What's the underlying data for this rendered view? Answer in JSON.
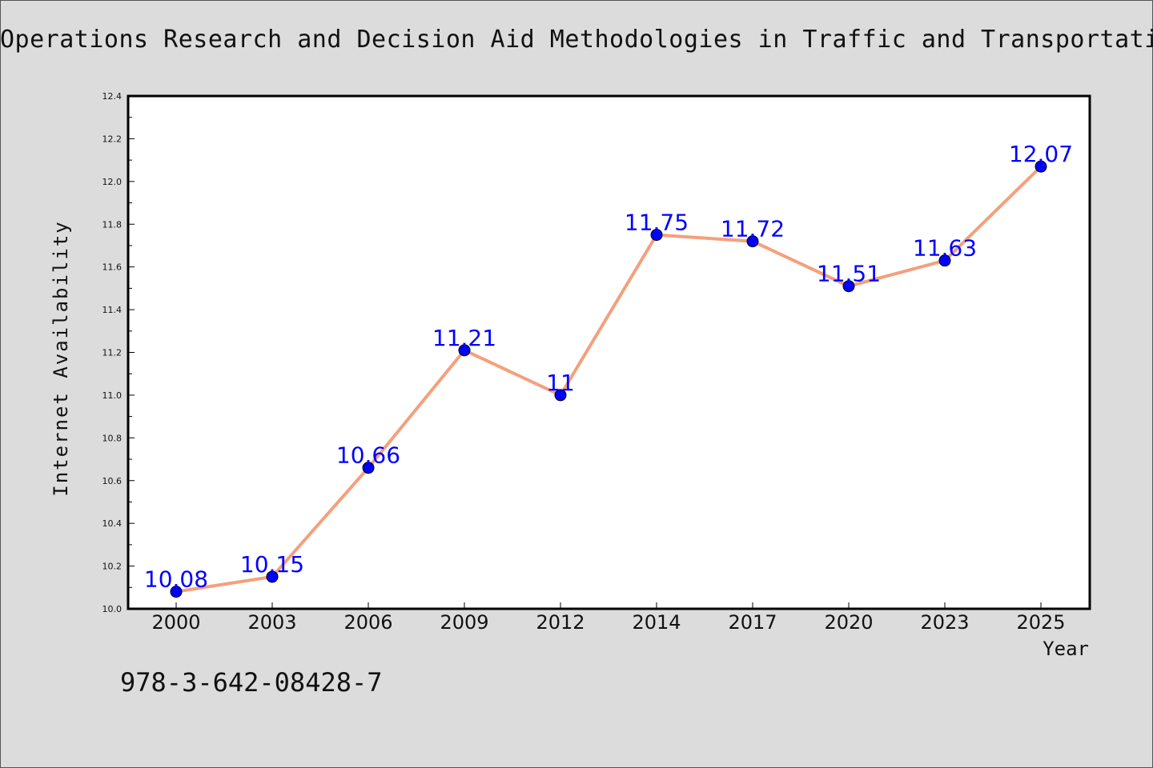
{
  "colors": {
    "background": "#dcdcdc",
    "plot_bg": "#ffffff",
    "line": "#f4a07c",
    "marker": "#0000ff",
    "label": "#0000ff"
  },
  "chart_data": {
    "type": "line",
    "title": "Operations Research and Decision Aid Methodologies in Traffic and Transportation",
    "xlabel": "Year",
    "ylabel": "Internet Availability",
    "categories": [
      "2000",
      "2003",
      "2006",
      "2009",
      "2012",
      "2014",
      "2017",
      "2020",
      "2023",
      "2025"
    ],
    "series": [
      {
        "values": [
          10.08,
          10.15,
          10.66,
          11.21,
          11,
          11.75,
          11.72,
          11.51,
          11.63,
          12.07
        ],
        "labels": [
          "10.08",
          "10.15",
          "10.66",
          "11.21",
          "11",
          "11.75",
          "11.72",
          "11.51",
          "11.63",
          "12.07"
        ]
      }
    ],
    "ylim": [
      10.0,
      12.4
    ],
    "yticks": [
      "10.0",
      "10.2",
      "10.4",
      "10.6",
      "10.8",
      "11.0",
      "11.2",
      "11.4",
      "11.6",
      "11.8",
      "12.0",
      "12.2",
      "12.4"
    ],
    "grid": false,
    "legend": "none"
  },
  "footer_text": "978-3-642-08428-7"
}
